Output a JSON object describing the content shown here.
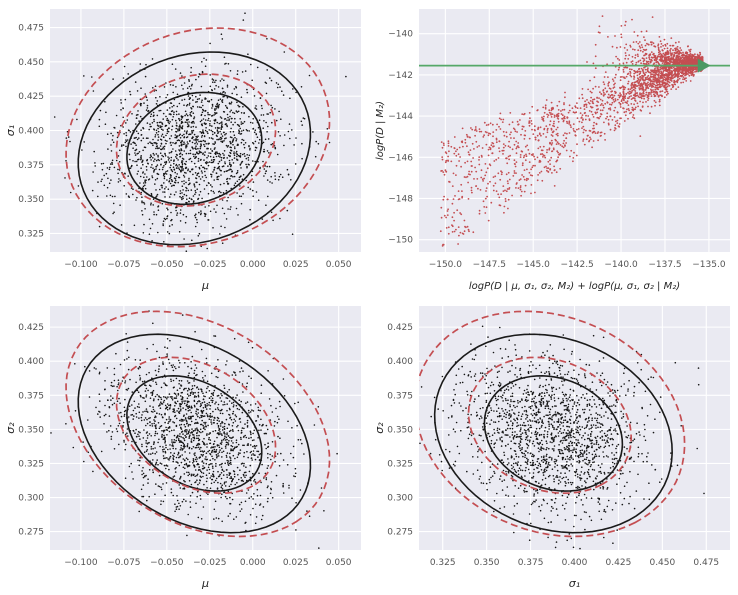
{
  "figure": {
    "background": "#ffffff",
    "axes_background": "#eaeaf2",
    "grid_color": "#ffffff",
    "tick_color": "#555555",
    "label_color": "#262626",
    "scatter_black": "#151515",
    "scatter_red": "#c44e52",
    "green": "#55a868"
  },
  "chart_data": [
    {
      "id": "mu-sigma1",
      "type": "scatter_contour",
      "title": "",
      "xlabel": "μ",
      "ylabel": "σ₁",
      "xlim": [
        -0.118,
        0.063
      ],
      "ylim": [
        0.3115,
        0.4885
      ],
      "grid": true,
      "xticks": {
        "values": [
          -0.1,
          -0.075,
          -0.05,
          -0.025,
          0.0,
          0.025,
          0.05
        ],
        "labels": [
          "−0.100",
          "−0.075",
          "−0.050",
          "−0.025",
          "0.000",
          "0.025",
          "0.050"
        ]
      },
      "yticks": {
        "values": [
          0.325,
          0.35,
          0.375,
          0.4,
          0.425,
          0.45,
          0.475
        ],
        "labels": [
          "0.325",
          "0.350",
          "0.375",
          "0.400",
          "0.425",
          "0.450",
          "0.475"
        ]
      },
      "scatter": {
        "n": 1700,
        "seed": 3,
        "mean": [
          -0.034,
          0.387
        ],
        "std": [
          0.026,
          0.027
        ],
        "corr": 0.15,
        "color": "#151515",
        "size": 0.8
      },
      "contours": [
        {
          "k": 1.51,
          "color": "#1a1a1a",
          "dash": "",
          "dx": 0,
          "dy": 0,
          "width": 1.6
        },
        {
          "k": 2.6,
          "color": "#1a1a1a",
          "dash": "",
          "dx": 0,
          "dy": 0,
          "width": 1.6
        },
        {
          "k": 1.78,
          "color": "#c44e52",
          "dash": "7 4",
          "dx": 0.001,
          "dy": 0.006,
          "width": 1.7
        },
        {
          "k": 2.95,
          "color": "#c44e52",
          "dash": "7 4",
          "dx": 0.002,
          "dy": 0.008,
          "width": 1.7
        }
      ]
    },
    {
      "id": "evidence",
      "type": "funnel",
      "title": "",
      "xlabel": "logP(D | μ, σ₁, σ₂, M₂) + logP(μ, σ₁, σ₂ | M₂)",
      "ylabel": "logP(D | M₂)",
      "xlim": [
        -151.5,
        -133.8
      ],
      "ylim": [
        -150.6,
        -138.8
      ],
      "grid": true,
      "xticks": {
        "values": [
          -150.0,
          -147.5,
          -145.0,
          -142.5,
          -140.0,
          -137.5,
          -135.0
        ],
        "labels": [
          "−150.0",
          "−147.5",
          "−145.0",
          "−142.5",
          "−140.0",
          "−137.5",
          "−135.0"
        ]
      },
      "yticks": {
        "values": [
          -150,
          -148,
          -146,
          -144,
          -142,
          -140
        ],
        "labels": [
          "−150",
          "−148",
          "−146",
          "−144",
          "−142",
          "−140"
        ]
      },
      "funnel": {
        "n_head": 1600,
        "n_tail": 1100,
        "n_tip": 200,
        "tip": [
          -135.35,
          -141.4
        ],
        "seed": 9,
        "color": "#c44e52",
        "size": 0.9
      },
      "line": {
        "y": -141.55,
        "color": "#55a868",
        "width": 1.8
      },
      "marker": {
        "type": "triangle-right",
        "x": -135.35,
        "y": -141.55,
        "color": "#4c9a64"
      }
    },
    {
      "id": "mu-sigma2",
      "type": "scatter_contour",
      "title": "",
      "xlabel": "μ",
      "ylabel": "σ₂",
      "xlim": [
        -0.118,
        0.063
      ],
      "ylim": [
        0.2615,
        0.4405
      ],
      "grid": true,
      "xticks": {
        "values": [
          -0.1,
          -0.075,
          -0.05,
          -0.025,
          0.0,
          0.025,
          0.05
        ],
        "labels": [
          "−0.100",
          "−0.075",
          "−0.050",
          "−0.025",
          "0.000",
          "0.025",
          "0.050"
        ]
      },
      "yticks": {
        "values": [
          0.275,
          0.3,
          0.325,
          0.35,
          0.375,
          0.4,
          0.425
        ],
        "labels": [
          "0.275",
          "0.300",
          "0.325",
          "0.350",
          "0.375",
          "0.400",
          "0.425"
        ]
      },
      "scatter": {
        "n": 1700,
        "seed": 5,
        "mean": [
          -0.034,
          0.347
        ],
        "std": [
          0.026,
          0.028
        ],
        "corr": -0.32,
        "color": "#151515",
        "size": 0.8
      },
      "contours": [
        {
          "k": 1.51,
          "color": "#1a1a1a",
          "dash": "",
          "dx": 0,
          "dy": 0,
          "width": 1.6
        },
        {
          "k": 2.6,
          "color": "#1a1a1a",
          "dash": "",
          "dx": 0,
          "dy": 0,
          "width": 1.6
        },
        {
          "k": 1.78,
          "color": "#c44e52",
          "dash": "7 4",
          "dx": 0.001,
          "dy": 0.006,
          "width": 1.7
        },
        {
          "k": 2.95,
          "color": "#c44e52",
          "dash": "7 4",
          "dx": 0.002,
          "dy": 0.007,
          "width": 1.7
        }
      ]
    },
    {
      "id": "sigma1-sigma2",
      "type": "scatter_contour",
      "title": "",
      "xlabel": "σ₁",
      "ylabel": "σ₂",
      "xlim": [
        0.3115,
        0.4885
      ],
      "ylim": [
        0.2615,
        0.4405
      ],
      "grid": true,
      "xticks": {
        "values": [
          0.325,
          0.35,
          0.375,
          0.4,
          0.425,
          0.45,
          0.475
        ],
        "labels": [
          "0.325",
          "0.350",
          "0.375",
          "0.400",
          "0.425",
          "0.450",
          "0.475"
        ]
      },
      "yticks": {
        "values": [
          0.275,
          0.3,
          0.325,
          0.35,
          0.375,
          0.4,
          0.425
        ],
        "labels": [
          "0.275",
          "0.300",
          "0.325",
          "0.350",
          "0.375",
          "0.400",
          "0.425"
        ]
      },
      "scatter": {
        "n": 1700,
        "seed": 8,
        "mean": [
          0.388,
          0.347
        ],
        "std": [
          0.026,
          0.028
        ],
        "corr": -0.18,
        "color": "#151515",
        "size": 0.8
      },
      "contours": [
        {
          "k": 1.51,
          "color": "#1a1a1a",
          "dash": "",
          "dx": 0,
          "dy": 0,
          "width": 1.6
        },
        {
          "k": 2.6,
          "color": "#1a1a1a",
          "dash": "",
          "dx": 0,
          "dy": 0,
          "width": 1.6
        },
        {
          "k": 1.78,
          "color": "#c44e52",
          "dash": "7 4",
          "dx": -0.002,
          "dy": 0.006,
          "width": 1.7
        },
        {
          "k": 2.95,
          "color": "#c44e52",
          "dash": "7 4",
          "dx": -0.002,
          "dy": 0.007,
          "width": 1.7
        }
      ]
    }
  ]
}
